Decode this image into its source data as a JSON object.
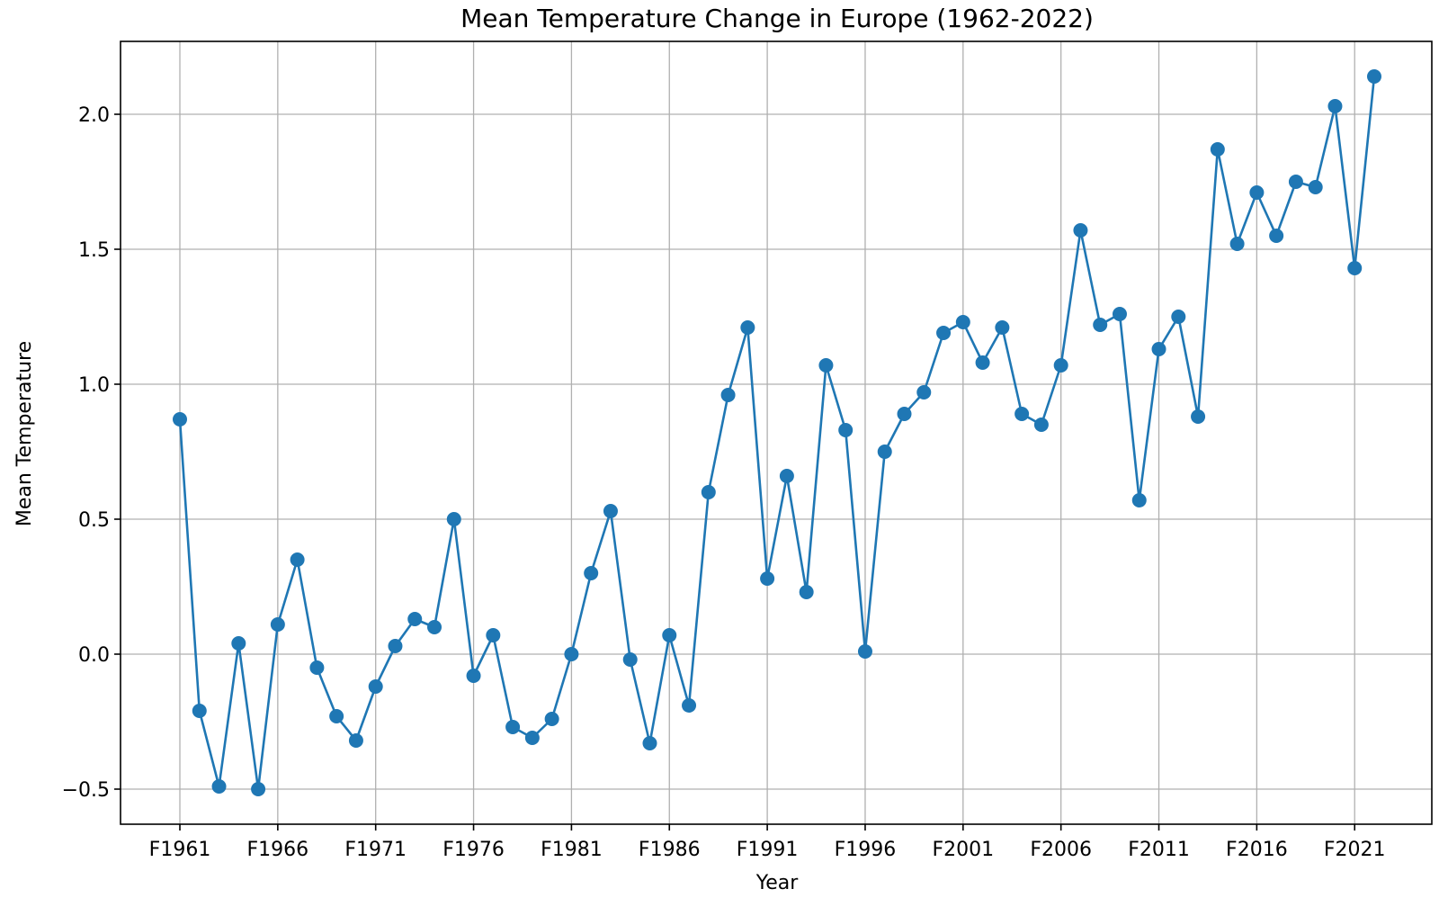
{
  "chart_data": {
    "type": "line",
    "title": "Mean Temperature Change in Europe (1962-2022)",
    "xlabel": "Year",
    "ylabel": "Mean Temperature",
    "grid": true,
    "marker": "circle",
    "color": "#1f77b4",
    "ylim": [
      -0.63,
      2.27
    ],
    "yticks": [
      -0.5,
      0.0,
      0.5,
      1.0,
      1.5,
      2.0
    ],
    "ytick_labels": [
      "−0.5",
      "0.0",
      "0.5",
      "1.0",
      "1.5",
      "2.0"
    ],
    "xtick_labels": [
      "F1961",
      "F1966",
      "F1971",
      "F1976",
      "F1981",
      "F1986",
      "F1991",
      "F1996",
      "F2001",
      "F2006",
      "F2011",
      "F2016",
      "F2021"
    ],
    "categories": [
      "F1961",
      "F1962",
      "F1963",
      "F1964",
      "F1965",
      "F1966",
      "F1967",
      "F1968",
      "F1969",
      "F1970",
      "F1971",
      "F1972",
      "F1973",
      "F1974",
      "F1975",
      "F1976",
      "F1977",
      "F1978",
      "F1979",
      "F1980",
      "F1981",
      "F1982",
      "F1983",
      "F1984",
      "F1985",
      "F1986",
      "F1987",
      "F1988",
      "F1989",
      "F1990",
      "F1991",
      "F1992",
      "F1993",
      "F1994",
      "F1995",
      "F1996",
      "F1997",
      "F1998",
      "F1999",
      "F2000",
      "F2001",
      "F2002",
      "F2003",
      "F2004",
      "F2005",
      "F2006",
      "F2007",
      "F2008",
      "F2009",
      "F2010",
      "F2011",
      "F2012",
      "F2013",
      "F2014",
      "F2015",
      "F2016",
      "F2017",
      "F2018",
      "F2019",
      "F2020",
      "F2021",
      "F2022"
    ],
    "values": [
      0.87,
      -0.21,
      -0.49,
      0.04,
      -0.5,
      0.11,
      0.35,
      -0.05,
      -0.23,
      -0.32,
      -0.12,
      0.03,
      0.13,
      0.1,
      0.5,
      -0.08,
      0.07,
      -0.27,
      -0.31,
      -0.24,
      0.0,
      0.3,
      0.53,
      -0.02,
      -0.33,
      0.07,
      -0.19,
      0.6,
      0.96,
      1.21,
      0.28,
      0.66,
      0.23,
      1.07,
      0.83,
      0.01,
      0.75,
      0.89,
      0.97,
      1.19,
      1.23,
      1.08,
      1.21,
      0.89,
      0.85,
      1.07,
      1.57,
      1.22,
      1.26,
      0.57,
      1.13,
      1.25,
      0.88,
      1.87,
      1.52,
      1.71,
      1.55,
      1.75,
      1.73,
      2.03,
      1.43,
      2.14
    ]
  }
}
